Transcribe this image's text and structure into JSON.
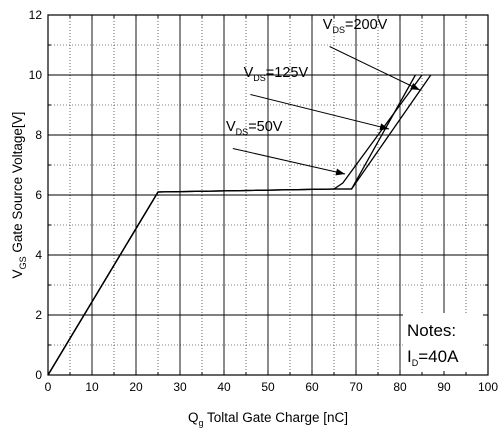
{
  "chart_data": {
    "type": "line",
    "xlabel": {
      "main": "Q",
      "sub": "g",
      "rest": " Toltal Gate Charge [nC]"
    },
    "ylabel": {
      "main": "V",
      "sub": "GS",
      "rest": " Gate Source Voltage[V]"
    },
    "xlim": [
      0,
      100
    ],
    "ylim": [
      0,
      12
    ],
    "x_ticks": [
      "0",
      "10",
      "20",
      "30",
      "40",
      "50",
      "60",
      "70",
      "80",
      "90",
      "100"
    ],
    "y_ticks": [
      "0",
      "2",
      "4",
      "6",
      "8",
      "10",
      "12"
    ],
    "grid": true,
    "series": [
      {
        "name": "VDS=50V",
        "x": [
          0,
          25,
          65,
          68.5,
          69,
          83.5
        ],
        "y": [
          0,
          6.1,
          6.2,
          6.2,
          6.2,
          10
        ]
      },
      {
        "name": "VDS=125V",
        "x": [
          0,
          25,
          65,
          67,
          85
        ],
        "y": [
          0,
          6.1,
          6.2,
          6.4,
          10
        ]
      },
      {
        "name": "VDS=200V",
        "x": [
          0,
          25,
          65,
          69,
          87
        ],
        "y": [
          0,
          6.1,
          6.2,
          6.2,
          10
        ]
      }
    ],
    "annotations": [
      {
        "main": "V",
        "sub": "DS",
        "rest": "=200V",
        "ax": 62,
        "ay": 11.3,
        "tx": 84.5,
        "ty": 9.5
      },
      {
        "main": "V",
        "sub": "DS",
        "rest": "=125V",
        "ax": 44,
        "ay": 9.7,
        "tx": 77.5,
        "ty": 8.2
      },
      {
        "main": "V",
        "sub": "DS",
        "rest": "=50V",
        "ax": 40,
        "ay": 7.9,
        "tx": 67.5,
        "ty": 6.7
      }
    ],
    "notes": {
      "line1": "Notes:",
      "line2_main": "I",
      "line2_sub": "D",
      "line2_rest": "=40A"
    }
  }
}
